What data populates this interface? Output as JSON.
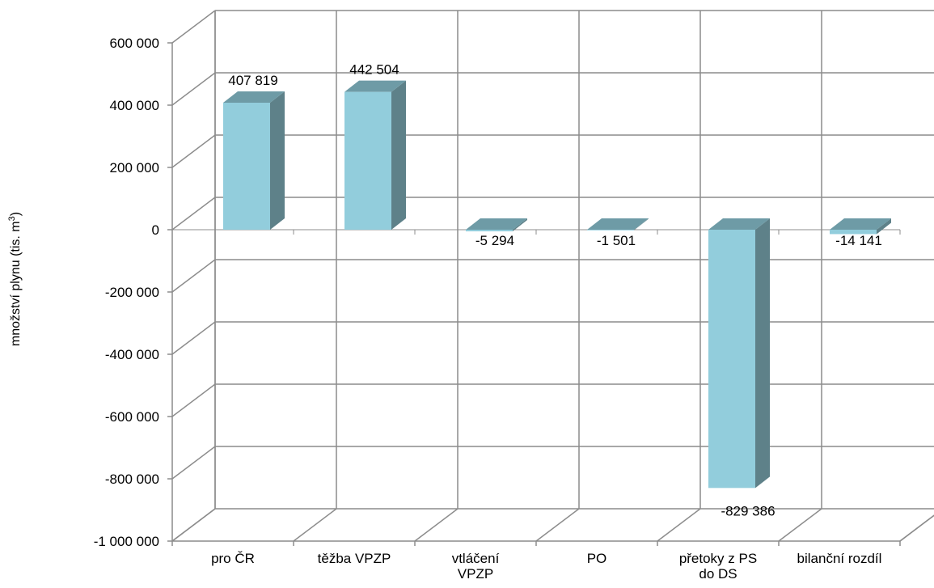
{
  "chart_data": {
    "type": "bar",
    "categories": [
      [
        "pro ČR"
      ],
      [
        "těžba VPZP"
      ],
      [
        "vtláčení",
        "VPZP"
      ],
      [
        "PO"
      ],
      [
        "přetoky z PS",
        "do DS"
      ],
      [
        "bilanční rozdíl"
      ]
    ],
    "values": [
      407819,
      442504,
      -5294,
      -1501,
      -829386,
      -14141
    ],
    "value_labels": [
      "407 819",
      "442 504",
      "-5 294",
      "-1 501",
      "-829 386",
      "-14 141"
    ],
    "ylabel": "množství plynu (tis. m",
    "ylabel_sup": "3",
    "ylabel_suffix": ")",
    "ylim": [
      -1000000,
      600000
    ],
    "yticks": [
      600000,
      400000,
      200000,
      0,
      -200000,
      -400000,
      -600000,
      -800000,
      -1000000
    ],
    "ytick_labels": [
      "600 000",
      "400 000",
      "200 000",
      "0",
      "-200 000",
      "-400 000",
      "-600 000",
      "-800 000",
      "-1 000 000"
    ],
    "grid": true,
    "style": "3d-column",
    "colors": {
      "bar_front": "#92CDDC",
      "bar_top": "#6E9BA6",
      "bar_side": "#5E8189",
      "grid": "#8C8C8C"
    }
  }
}
